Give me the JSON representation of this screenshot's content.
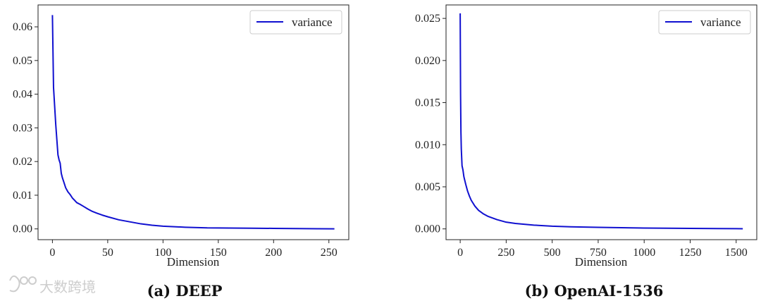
{
  "colors": {
    "line": "#1010d0",
    "axis": "#222222"
  },
  "watermark": {
    "text": "大数跨境",
    "icon": "watermark-logo-icon"
  },
  "chart_data": [
    {
      "type": "line",
      "caption": "(a) DEEP",
      "xlabel": "Dimension",
      "ylabel": "",
      "xlim": [
        -13,
        268
      ],
      "ylim": [
        -0.0032,
        0.0665
      ],
      "xticks": [
        0,
        50,
        100,
        150,
        200,
        250
      ],
      "xtick_labels": [
        "0",
        "50",
        "100",
        "150",
        "200",
        "250"
      ],
      "yticks": [
        0.0,
        0.01,
        0.02,
        0.03,
        0.04,
        0.05,
        0.06
      ],
      "ytick_labels": [
        "0.00",
        "0.01",
        "0.02",
        "0.03",
        "0.04",
        "0.05",
        "0.06"
      ],
      "legend": {
        "position": "top-right",
        "entries": [
          "variance"
        ]
      },
      "grid": false,
      "series": [
        {
          "name": "variance",
          "x": [
            0,
            1,
            2,
            3,
            4,
            5,
            6,
            7,
            8,
            9,
            10,
            12,
            14,
            16,
            18,
            20,
            22,
            25,
            28,
            32,
            36,
            40,
            45,
            50,
            60,
            70,
            80,
            90,
            100,
            120,
            140,
            160,
            180,
            200,
            220,
            240,
            255
          ],
          "y": [
            0.0635,
            0.042,
            0.0365,
            0.031,
            0.0265,
            0.022,
            0.0205,
            0.0195,
            0.0165,
            0.0152,
            0.0142,
            0.0122,
            0.011,
            0.0102,
            0.0092,
            0.0085,
            0.0078,
            0.0073,
            0.0067,
            0.0059,
            0.0052,
            0.0047,
            0.0041,
            0.0036,
            0.0027,
            0.0021,
            0.0015,
            0.0011,
            0.0008,
            0.0005,
            0.0003,
            0.00025,
            0.0002,
            0.00015,
            0.0001,
            5e-05,
            2e-05
          ]
        }
      ]
    },
    {
      "type": "line",
      "caption": "(b) OpenAI-1536",
      "xlabel": "Dimension",
      "ylabel": "",
      "xlim": [
        -77,
        1612
      ],
      "ylim": [
        -0.00128,
        0.0266
      ],
      "xticks": [
        0,
        250,
        500,
        750,
        1000,
        1250,
        1500
      ],
      "xtick_labels": [
        "0",
        "250",
        "500",
        "750",
        "1000",
        "1250",
        "1500"
      ],
      "yticks": [
        0.0,
        0.005,
        0.01,
        0.015,
        0.02,
        0.025
      ],
      "ytick_labels": [
        "0.000",
        "0.005",
        "0.010",
        "0.015",
        "0.020",
        "0.025"
      ],
      "legend": {
        "position": "top-right",
        "entries": [
          "variance"
        ]
      },
      "grid": false,
      "series": [
        {
          "name": "variance",
          "x": [
            0,
            2,
            4,
            6,
            10,
            15,
            20,
            30,
            40,
            50,
            60,
            80,
            100,
            125,
            150,
            200,
            250,
            300,
            400,
            500,
            600,
            750,
            1000,
            1250,
            1500,
            1536
          ],
          "y": [
            0.0256,
            0.016,
            0.0115,
            0.0095,
            0.0075,
            0.007,
            0.0062,
            0.0053,
            0.0045,
            0.0039,
            0.0034,
            0.0027,
            0.0022,
            0.0018,
            0.0015,
            0.0011,
            0.0008,
            0.00065,
            0.00045,
            0.00032,
            0.00025,
            0.00018,
            0.0001,
            6e-05,
            3e-05,
            2e-05
          ]
        }
      ]
    }
  ]
}
